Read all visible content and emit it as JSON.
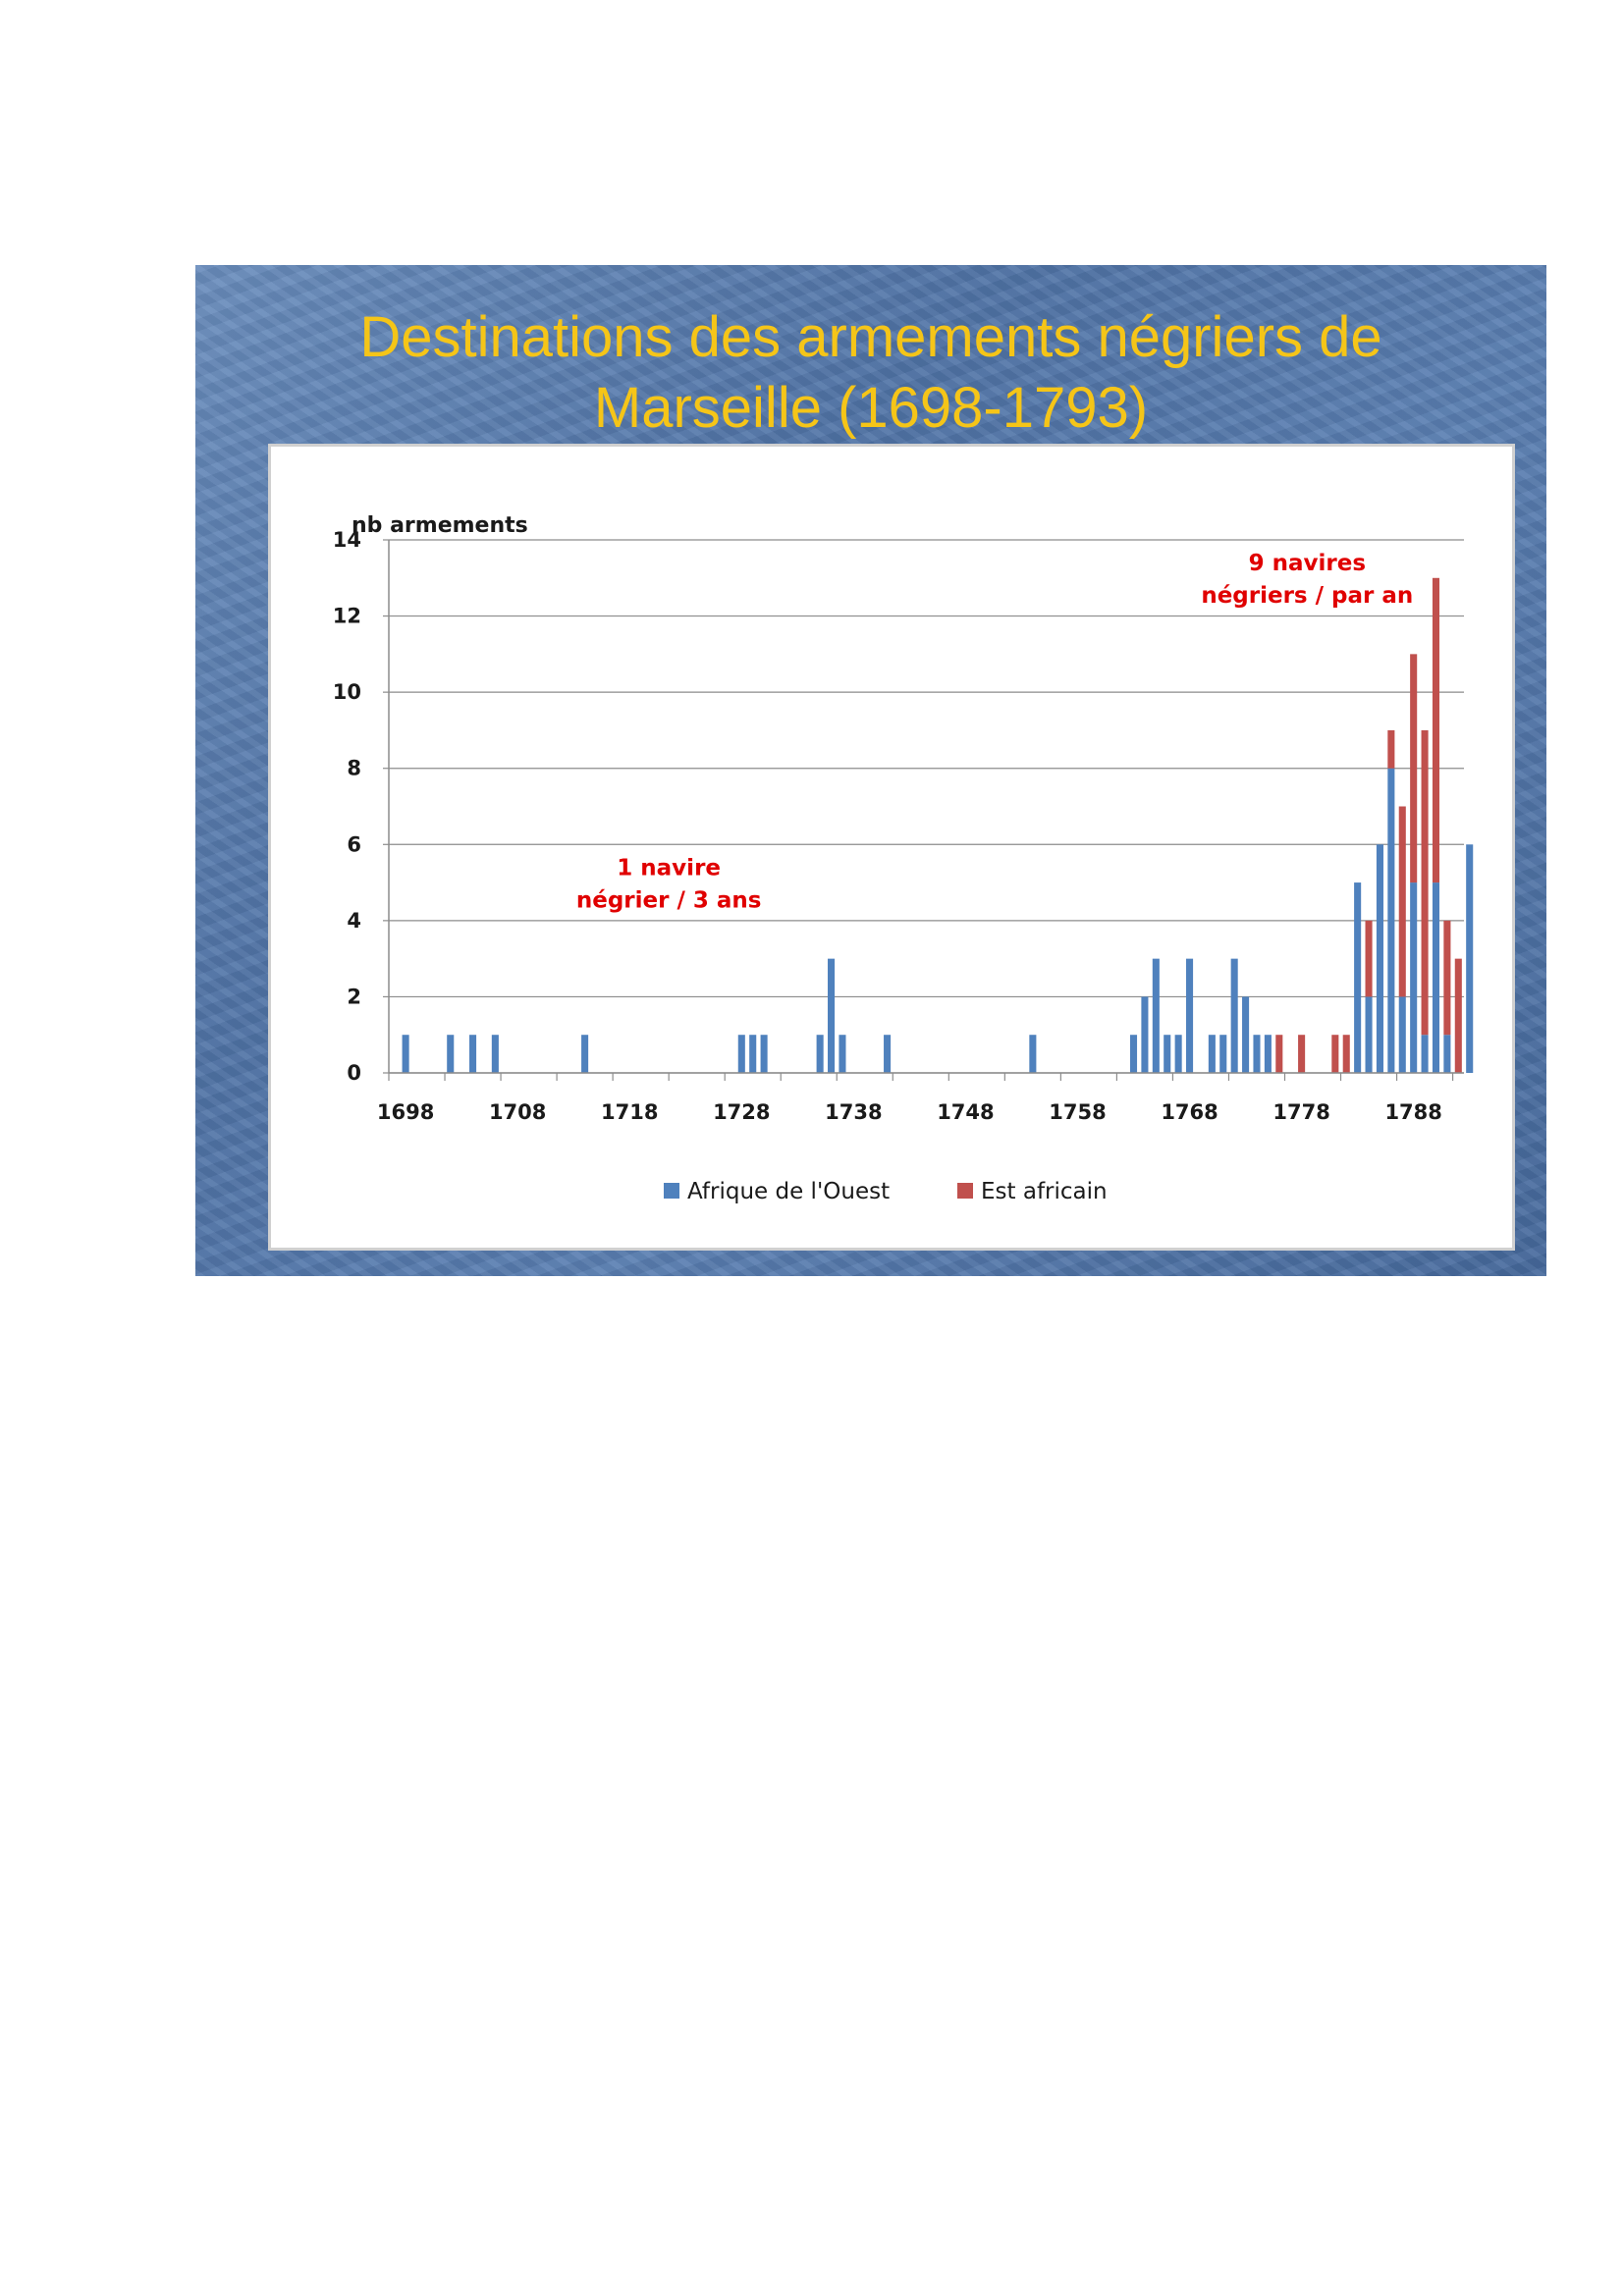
{
  "slide": {
    "title_line1": "Destinations des armements négriers de",
    "title_line2": "Marseille (1698-1793)"
  },
  "colors": {
    "title": "#f5c518",
    "west": "#4f81bd",
    "east": "#c0504d",
    "annotation": "#e00000"
  },
  "chart_data": {
    "type": "bar",
    "stacked": true,
    "title": "Destinations des armements négriers de Marseille (1698-1793)",
    "ylabel": "nb armements",
    "xlabel": "",
    "ylim": [
      0,
      14
    ],
    "yticks": [
      0,
      2,
      4,
      6,
      8,
      10,
      12,
      14
    ],
    "xlim": [
      1697,
      1793
    ],
    "xticks": [
      1698,
      1708,
      1718,
      1728,
      1738,
      1748,
      1758,
      1768,
      1778,
      1788
    ],
    "grid": true,
    "legend_position": "bottom",
    "series": [
      {
        "name": "Afrique de l'Ouest",
        "color": "#4f81bd",
        "points": [
          [
            1698,
            1
          ],
          [
            1702,
            1
          ],
          [
            1704,
            1
          ],
          [
            1706,
            1
          ],
          [
            1714,
            1
          ],
          [
            1728,
            1
          ],
          [
            1729,
            1
          ],
          [
            1730,
            1
          ],
          [
            1735,
            1
          ],
          [
            1736,
            3
          ],
          [
            1737,
            1
          ],
          [
            1741,
            1
          ],
          [
            1754,
            1
          ],
          [
            1763,
            1
          ],
          [
            1764,
            2
          ],
          [
            1765,
            3
          ],
          [
            1766,
            1
          ],
          [
            1767,
            1
          ],
          [
            1768,
            3
          ],
          [
            1770,
            1
          ],
          [
            1771,
            1
          ],
          [
            1772,
            3
          ],
          [
            1773,
            2
          ],
          [
            1774,
            1
          ],
          [
            1775,
            1
          ],
          [
            1783,
            5
          ],
          [
            1784,
            2
          ],
          [
            1785,
            6
          ],
          [
            1786,
            8
          ],
          [
            1787,
            2
          ],
          [
            1788,
            5
          ],
          [
            1789,
            1
          ],
          [
            1790,
            5
          ],
          [
            1791,
            1
          ],
          [
            1793,
            6
          ]
        ]
      },
      {
        "name": "Est africain",
        "color": "#c0504d",
        "points": [
          [
            1776,
            1
          ],
          [
            1778,
            1
          ],
          [
            1781,
            1
          ],
          [
            1782,
            1
          ],
          [
            1784,
            2
          ],
          [
            1786,
            1
          ],
          [
            1787,
            5
          ],
          [
            1788,
            6
          ],
          [
            1789,
            8
          ],
          [
            1790,
            8
          ],
          [
            1791,
            3
          ],
          [
            1792,
            3
          ]
        ]
      }
    ],
    "annotations": [
      {
        "line1": "1 navire",
        "line2": "négrier / 3 ans",
        "x": 1722,
        "y": 5.2
      },
      {
        "line1": "9 navires",
        "line2": "négriers / par an",
        "x": 1779,
        "y": 13.2
      }
    ]
  }
}
